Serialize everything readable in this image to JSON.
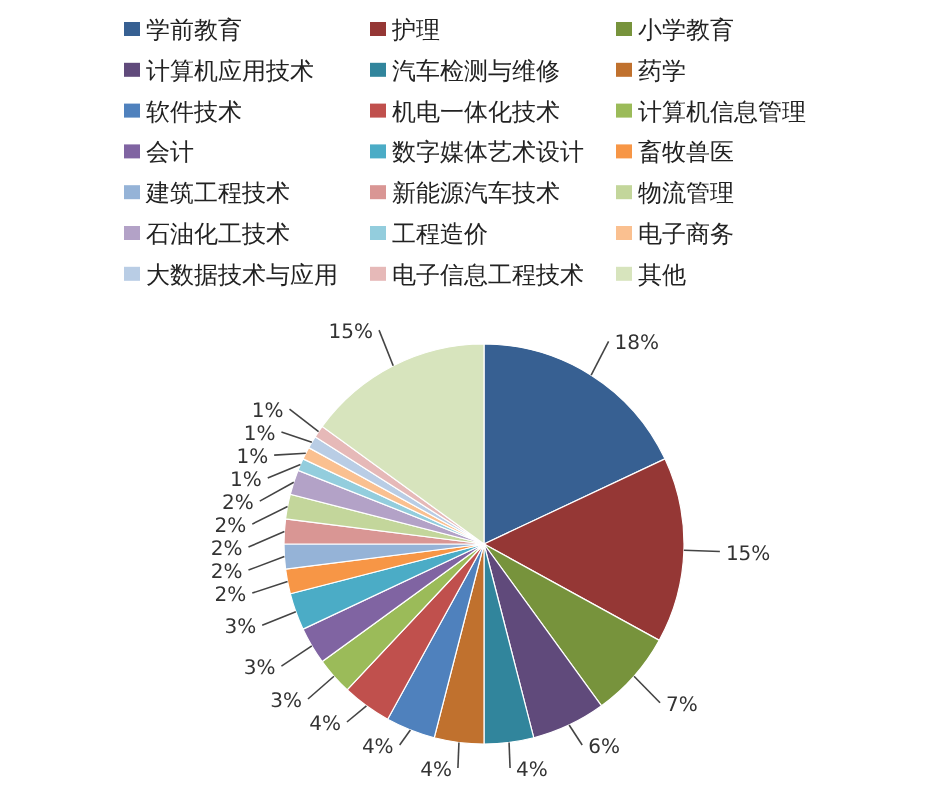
{
  "chart_data": {
    "type": "pie",
    "categories": [
      "学前教育",
      "护理",
      "小学教育",
      "计算机应用技术",
      "汽车检测与维修",
      "药学",
      "软件技术",
      "机电一体化技术",
      "计算机信息管理",
      "会计",
      "数字媒体艺术设计",
      "畜牧兽医",
      "建筑工程技术",
      "新能源汽车技术",
      "物流管理",
      "石油化工技术",
      "工程造价",
      "电子商务",
      "大数据技术与应用",
      "电子信息工程技术",
      "其他"
    ],
    "values": [
      18,
      15,
      7,
      6,
      4,
      4,
      4,
      4,
      3,
      3,
      3,
      2,
      2,
      2,
      2,
      2,
      1,
      1,
      1,
      1,
      15
    ],
    "value_labels": [
      "18%",
      "15%",
      "7%",
      "6%",
      "4%",
      "4%",
      "4%",
      "4%",
      "3%",
      "3%",
      "3%",
      "2%",
      "2%",
      "2%",
      "2%",
      "2%",
      "1%",
      "1%",
      "1%",
      "1%",
      "15%"
    ],
    "colors": [
      "#376092",
      "#953735",
      "#77933c",
      "#604a7b",
      "#31859c",
      "#c0712e",
      "#4f81bd",
      "#c0504d",
      "#9bbb59",
      "#8064a2",
      "#4bacc6",
      "#f79646",
      "#95b3d7",
      "#d99694",
      "#c3d69b",
      "#b3a2c7",
      "#93cddd",
      "#fac090",
      "#b9cde5",
      "#e6b9b8",
      "#d7e4bd"
    ],
    "legend": "top"
  }
}
